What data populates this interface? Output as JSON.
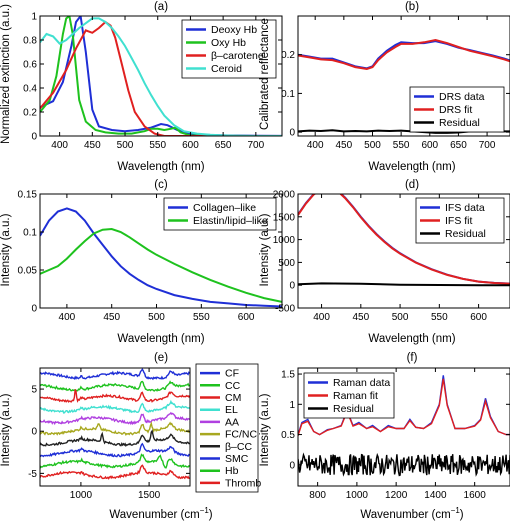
{
  "chart_data": [
    {
      "id": "a",
      "type": "line",
      "title": "(a)",
      "xlabel": "Wavelength (nm)",
      "ylabel": "Normalized extinction (a.u.)",
      "xlim": [
        370,
        740
      ],
      "ylim": [
        0,
        1
      ],
      "xticks": [
        400,
        450,
        500,
        550,
        600,
        650,
        700
      ],
      "yticks": [
        0,
        0.2,
        0.4,
        0.6,
        0.8,
        1
      ],
      "legend": "top-right",
      "series": [
        {
          "name": "Deoxy Hb",
          "color": "#1f2fd6",
          "x": [
            370,
            390,
            405,
            418,
            425,
            432,
            440,
            450,
            460,
            480,
            500,
            520,
            540,
            555,
            565,
            580,
            600,
            620,
            650,
            700,
            740
          ],
          "y": [
            0.24,
            0.29,
            0.45,
            0.75,
            0.95,
            1.0,
            0.7,
            0.22,
            0.08,
            0.05,
            0.04,
            0.05,
            0.07,
            0.1,
            0.09,
            0.05,
            0.02,
            0.01,
            0.005,
            0.002,
            0.001
          ]
        },
        {
          "name": "Oxy Hb",
          "color": "#1ec21e",
          "x": [
            370,
            385,
            395,
            405,
            410,
            415,
            420,
            430,
            440,
            455,
            470,
            490,
            510,
            530,
            540,
            550,
            560,
            570,
            577,
            585,
            600,
            620,
            650,
            740
          ],
          "y": [
            0.2,
            0.3,
            0.5,
            0.85,
            0.98,
            1.0,
            0.85,
            0.3,
            0.12,
            0.05,
            0.03,
            0.02,
            0.02,
            0.04,
            0.06,
            0.06,
            0.05,
            0.06,
            0.07,
            0.03,
            0.005,
            0.002,
            0.001,
            0.0
          ]
        },
        {
          "name": "β–carotene",
          "color": "#e02020",
          "x": [
            370,
            390,
            410,
            425,
            440,
            450,
            460,
            470,
            478,
            485,
            495,
            505,
            515,
            530,
            545,
            560,
            580,
            740
          ],
          "y": [
            0.23,
            0.36,
            0.55,
            0.73,
            0.88,
            0.86,
            0.9,
            0.95,
            0.92,
            0.82,
            0.6,
            0.38,
            0.2,
            0.08,
            0.02,
            0.0,
            0.0,
            0.0
          ]
        },
        {
          "name": "Ceroid",
          "color": "#40e0d0",
          "x": [
            370,
            380,
            390,
            400,
            410,
            420,
            430,
            440,
            450,
            460,
            470,
            480,
            490,
            500,
            510,
            520,
            530,
            540,
            550,
            560,
            575,
            590,
            610,
            630,
            650,
            670,
            700,
            740
          ],
          "y": [
            0.78,
            0.85,
            0.83,
            0.77,
            0.8,
            0.85,
            0.9,
            0.94,
            0.98,
            0.98,
            0.95,
            0.9,
            0.83,
            0.75,
            0.65,
            0.55,
            0.44,
            0.34,
            0.25,
            0.17,
            0.09,
            0.04,
            0.02,
            0.01,
            0.005,
            0.002,
            0.0,
            0.0
          ]
        }
      ]
    },
    {
      "id": "b",
      "type": "line",
      "title": "(b)",
      "xlabel": "Wavelength (nm)",
      "ylabel": "Calibrated reflectance",
      "xlim": [
        370,
        740
      ],
      "ylim": [
        -0.01,
        0.3
      ],
      "xticks": [
        400,
        450,
        500,
        550,
        600,
        650,
        700
      ],
      "yticks": [
        0,
        0.1,
        0.2
      ],
      "legend": "bottom-right",
      "series": [
        {
          "name": "DRS data",
          "color": "#1f2fd6",
          "x": [
            370,
            390,
            410,
            430,
            450,
            470,
            490,
            500,
            510,
            525,
            540,
            550,
            570,
            590,
            610,
            630,
            650,
            670,
            690,
            710,
            730,
            740
          ],
          "y": [
            0.2,
            0.195,
            0.19,
            0.19,
            0.18,
            0.17,
            0.165,
            0.17,
            0.19,
            0.21,
            0.225,
            0.232,
            0.23,
            0.23,
            0.235,
            0.228,
            0.218,
            0.212,
            0.205,
            0.198,
            0.19,
            0.185
          ]
        },
        {
          "name": "DRS fit",
          "color": "#e02020",
          "x": [
            370,
            390,
            410,
            430,
            450,
            470,
            490,
            500,
            510,
            525,
            540,
            550,
            570,
            590,
            610,
            630,
            650,
            670,
            690,
            710,
            730,
            740
          ],
          "y": [
            0.198,
            0.193,
            0.188,
            0.186,
            0.178,
            0.168,
            0.163,
            0.168,
            0.186,
            0.206,
            0.22,
            0.228,
            0.228,
            0.232,
            0.238,
            0.23,
            0.22,
            0.21,
            0.203,
            0.196,
            0.188,
            0.183
          ]
        },
        {
          "name": "Residual",
          "color": "#000000",
          "x": [
            370,
            390,
            410,
            430,
            450,
            470,
            490,
            510,
            530,
            550,
            570,
            590,
            610,
            630,
            650,
            670,
            690,
            710,
            730,
            740
          ],
          "y": [
            0.002,
            0.004,
            0.003,
            0.005,
            0.002,
            0.003,
            0.002,
            0.004,
            0.003,
            0.004,
            0.002,
            0.0,
            -0.002,
            -0.002,
            -0.001,
            0.002,
            0.002,
            0.003,
            0.002,
            0.002
          ]
        }
      ]
    },
    {
      "id": "c",
      "type": "line",
      "title": "(c)",
      "xlabel": "Wavelength (nm)",
      "ylabel": "Intensity (a.u.)",
      "xlim": [
        370,
        640
      ],
      "ylim": [
        0,
        0.15
      ],
      "xticks": [
        400,
        450,
        500,
        550,
        600
      ],
      "yticks": [
        0,
        0.05,
        0.1,
        0.15
      ],
      "legend": "top-right",
      "series": [
        {
          "name": "Collagen–like",
          "color": "#1f2fd6",
          "x": [
            370,
            380,
            390,
            400,
            410,
            420,
            430,
            440,
            450,
            460,
            470,
            480,
            490,
            500,
            520,
            540,
            560,
            580,
            600,
            620,
            640
          ],
          "y": [
            0.095,
            0.115,
            0.127,
            0.131,
            0.127,
            0.115,
            0.098,
            0.083,
            0.068,
            0.055,
            0.045,
            0.037,
            0.03,
            0.025,
            0.017,
            0.012,
            0.008,
            0.006,
            0.004,
            0.003,
            0.002
          ]
        },
        {
          "name": "Elastin/lipid–like",
          "color": "#1ec21e",
          "x": [
            370,
            380,
            390,
            400,
            410,
            420,
            430,
            440,
            450,
            460,
            470,
            480,
            490,
            500,
            520,
            540,
            560,
            580,
            600,
            620,
            640
          ],
          "y": [
            0.045,
            0.05,
            0.055,
            0.065,
            0.077,
            0.088,
            0.098,
            0.103,
            0.104,
            0.1,
            0.093,
            0.085,
            0.077,
            0.07,
            0.058,
            0.047,
            0.037,
            0.028,
            0.02,
            0.013,
            0.008
          ]
        }
      ]
    },
    {
      "id": "d",
      "type": "line",
      "title": "(d)",
      "xlabel": "Wavelength (nm)",
      "ylabel": "Intensity (a.u.)",
      "xlim": [
        370,
        640
      ],
      "ylim": [
        -500,
        2000
      ],
      "xticks": [
        400,
        450,
        500,
        550,
        600
      ],
      "yticks": [
        -500,
        0,
        500,
        1000,
        1500,
        2000
      ],
      "legend": "top-right",
      "series": [
        {
          "name": "IFS data",
          "color": "#1f2fd6",
          "x": [
            370,
            380,
            390,
            400,
            410,
            420,
            430,
            440,
            450,
            460,
            470,
            480,
            490,
            500,
            520,
            540,
            560,
            580,
            600,
            620,
            640
          ],
          "y": [
            1550,
            1800,
            2000,
            2100,
            2150,
            2080,
            1920,
            1720,
            1500,
            1300,
            1120,
            960,
            820,
            700,
            500,
            350,
            230,
            140,
            80,
            50,
            35
          ]
        },
        {
          "name": "IFS fit",
          "color": "#e02020",
          "x": [
            370,
            380,
            390,
            400,
            410,
            420,
            430,
            440,
            450,
            460,
            470,
            480,
            490,
            500,
            520,
            540,
            560,
            580,
            600,
            620,
            640
          ],
          "y": [
            1540,
            1790,
            1990,
            2100,
            2140,
            2070,
            1910,
            1710,
            1490,
            1290,
            1110,
            950,
            810,
            690,
            495,
            345,
            225,
            138,
            78,
            48,
            33
          ]
        },
        {
          "name": "Residual",
          "color": "#000000",
          "x": [
            370,
            400,
            450,
            500,
            550,
            600,
            640
          ],
          "y": [
            20,
            40,
            30,
            10,
            5,
            0,
            0
          ]
        }
      ]
    },
    {
      "id": "e",
      "type": "line",
      "title": "(e)",
      "xlabel": "Wavenumber (cm$^{-1}$)",
      "ylabel": "Intensity (a.u.)",
      "xlim": [
        700,
        1800
      ],
      "ylim": [
        -6.5,
        7.5
      ],
      "xticks": [
        1000,
        1500
      ],
      "yticks": [
        -5,
        0,
        5
      ],
      "legend": "outside-right",
      "series": [
        {
          "name": "CF",
          "color": "#1f2fd6",
          "offset": 6.6
        },
        {
          "name": "CC",
          "color": "#1ec21e",
          "offset": 5.2
        },
        {
          "name": "CM",
          "color": "#e02020",
          "offset": 3.9
        },
        {
          "name": "EL",
          "color": "#40e0d0",
          "offset": 2.6
        },
        {
          "name": "AA",
          "color": "#b040e0",
          "offset": 1.3
        },
        {
          "name": "FC/NC",
          "color": "#a8a820",
          "offset": 0.0
        },
        {
          "name": "β–CC",
          "color": "#202020",
          "offset": -1.3
        },
        {
          "name": "SMC",
          "color": "#1f2fd6",
          "offset": -2.6
        },
        {
          "name": "Hb",
          "color": "#1ec21e",
          "offset": -3.9
        },
        {
          "name": "Thromb",
          "color": "#e02020",
          "offset": -5.2
        }
      ]
    },
    {
      "id": "f",
      "type": "line",
      "title": "(f)",
      "xlabel": "Wavenumber (cm$^{-1}$)",
      "ylabel": "Intensity (a.u.)",
      "xlim": [
        700,
        1780
      ],
      "ylim": [
        -0.35,
        1.6
      ],
      "xticks": [
        800,
        1000,
        1200,
        1400,
        1600
      ],
      "yticks": [
        0,
        0.5,
        1,
        1.5
      ],
      "legend": "top-left",
      "series": [
        {
          "name": "Raman data",
          "color": "#1f2fd6",
          "x": [
            700,
            720,
            750,
            780,
            810,
            850,
            880,
            920,
            950,
            980,
            1010,
            1050,
            1080,
            1120,
            1160,
            1200,
            1240,
            1270,
            1300,
            1340,
            1380,
            1420,
            1440,
            1460,
            1500,
            1550,
            1600,
            1630,
            1655,
            1680,
            1720,
            1760,
            1780
          ],
          "y": [
            0.5,
            0.7,
            0.75,
            0.55,
            0.5,
            0.58,
            0.6,
            0.65,
            0.9,
            0.65,
            0.7,
            0.6,
            0.65,
            0.55,
            0.65,
            0.6,
            0.6,
            0.75,
            0.62,
            0.6,
            0.7,
            1.0,
            1.48,
            1.0,
            0.6,
            0.6,
            0.65,
            0.75,
            1.1,
            0.8,
            0.55,
            0.5,
            0.5
          ]
        },
        {
          "name": "Raman fit",
          "color": "#e02020",
          "x": [
            700,
            720,
            750,
            780,
            810,
            850,
            880,
            920,
            950,
            980,
            1010,
            1050,
            1080,
            1120,
            1160,
            1200,
            1240,
            1270,
            1300,
            1340,
            1380,
            1420,
            1440,
            1460,
            1500,
            1550,
            1600,
            1630,
            1655,
            1680,
            1720,
            1760,
            1780
          ],
          "y": [
            0.48,
            0.68,
            0.72,
            0.55,
            0.5,
            0.57,
            0.6,
            0.64,
            0.88,
            0.64,
            0.68,
            0.6,
            0.63,
            0.55,
            0.63,
            0.6,
            0.6,
            0.73,
            0.62,
            0.6,
            0.68,
            0.98,
            1.42,
            0.98,
            0.6,
            0.6,
            0.64,
            0.74,
            1.05,
            0.78,
            0.55,
            0.5,
            0.5
          ]
        },
        {
          "name": "Residual",
          "color": "#000000",
          "x": [
            700,
            1780
          ],
          "y": [
            0.0,
            0.0
          ]
        }
      ]
    }
  ]
}
